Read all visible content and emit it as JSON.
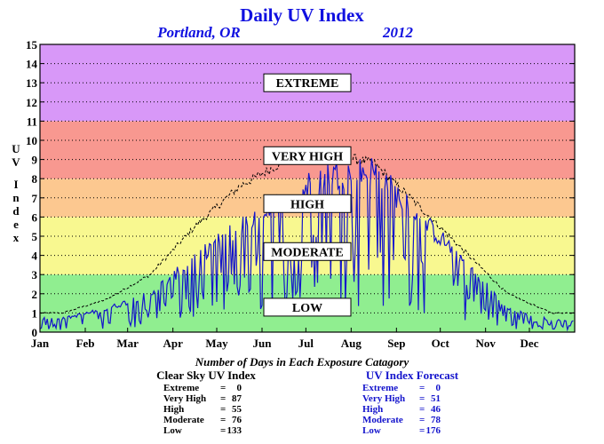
{
  "chart_data": {
    "type": "line",
    "title": "Daily UV Index",
    "location": "Portland, OR",
    "year": "2012",
    "ylabel": "UV Index",
    "ylim": [
      0,
      15
    ],
    "yticks": [
      "0",
      "1",
      "2",
      "3",
      "4",
      "5",
      "6",
      "7",
      "8",
      "9",
      "10",
      "11",
      "12",
      "13",
      "14",
      "15"
    ],
    "categories": [
      "Jan",
      "Feb",
      "Mar",
      "Apr",
      "May",
      "Jun",
      "Jul",
      "Aug",
      "Sep",
      "Oct",
      "Nov",
      "Dec"
    ],
    "grid": true,
    "zones": [
      {
        "label": "LOW",
        "from": 0,
        "to": 3,
        "color": "#90ee90"
      },
      {
        "label": "MODERATE",
        "from": 3,
        "to": 6,
        "color": "#f8f890"
      },
      {
        "label": "HIGH",
        "from": 6,
        "to": 8,
        "color": "#fcc890"
      },
      {
        "label": "VERY HIGH",
        "from": 8,
        "to": 11,
        "color": "#f89890"
      },
      {
        "label": "EXTREME",
        "from": 11,
        "to": 15,
        "color": "#d898f8"
      }
    ],
    "series": [
      {
        "name": "Clear Sky UV Index",
        "color": "#000000",
        "style": "dashed",
        "monthly_values": [
          1.0,
          1.7,
          3.0,
          5.5,
          7.6,
          8.9,
          9.3,
          8.8,
          6.6,
          4.3,
          2.0,
          1.0
        ]
      },
      {
        "name": "UV Index Forecast",
        "color": "#1414cc",
        "style": "solid",
        "monthly_values": [
          0.7,
          1.2,
          2.0,
          3.8,
          5.5,
          6.9,
          8.2,
          8.4,
          6.0,
          3.8,
          1.2,
          0.6
        ]
      }
    ]
  },
  "stats": {
    "heading": "Number of Days in Each Exposure Catagory",
    "clear_sky": {
      "title": "Clear Sky UV Index",
      "rows": [
        {
          "label": "Extreme",
          "eq": "=",
          "value": "0"
        },
        {
          "label": "Very High",
          "eq": "=",
          "value": "87"
        },
        {
          "label": "High",
          "eq": "=",
          "value": "55"
        },
        {
          "label": "Moderate",
          "eq": "=",
          "value": "76"
        },
        {
          "label": "Low",
          "eq": "=",
          "value": "133"
        }
      ]
    },
    "forecast": {
      "title": "UV Index Forecast",
      "rows": [
        {
          "label": "Extreme",
          "eq": "=",
          "value": "0"
        },
        {
          "label": "Very High",
          "eq": "=",
          "value": "51"
        },
        {
          "label": "High",
          "eq": "=",
          "value": "46"
        },
        {
          "label": "Moderate",
          "eq": "=",
          "value": "78"
        },
        {
          "label": "Low",
          "eq": "=",
          "value": "176"
        }
      ]
    }
  }
}
